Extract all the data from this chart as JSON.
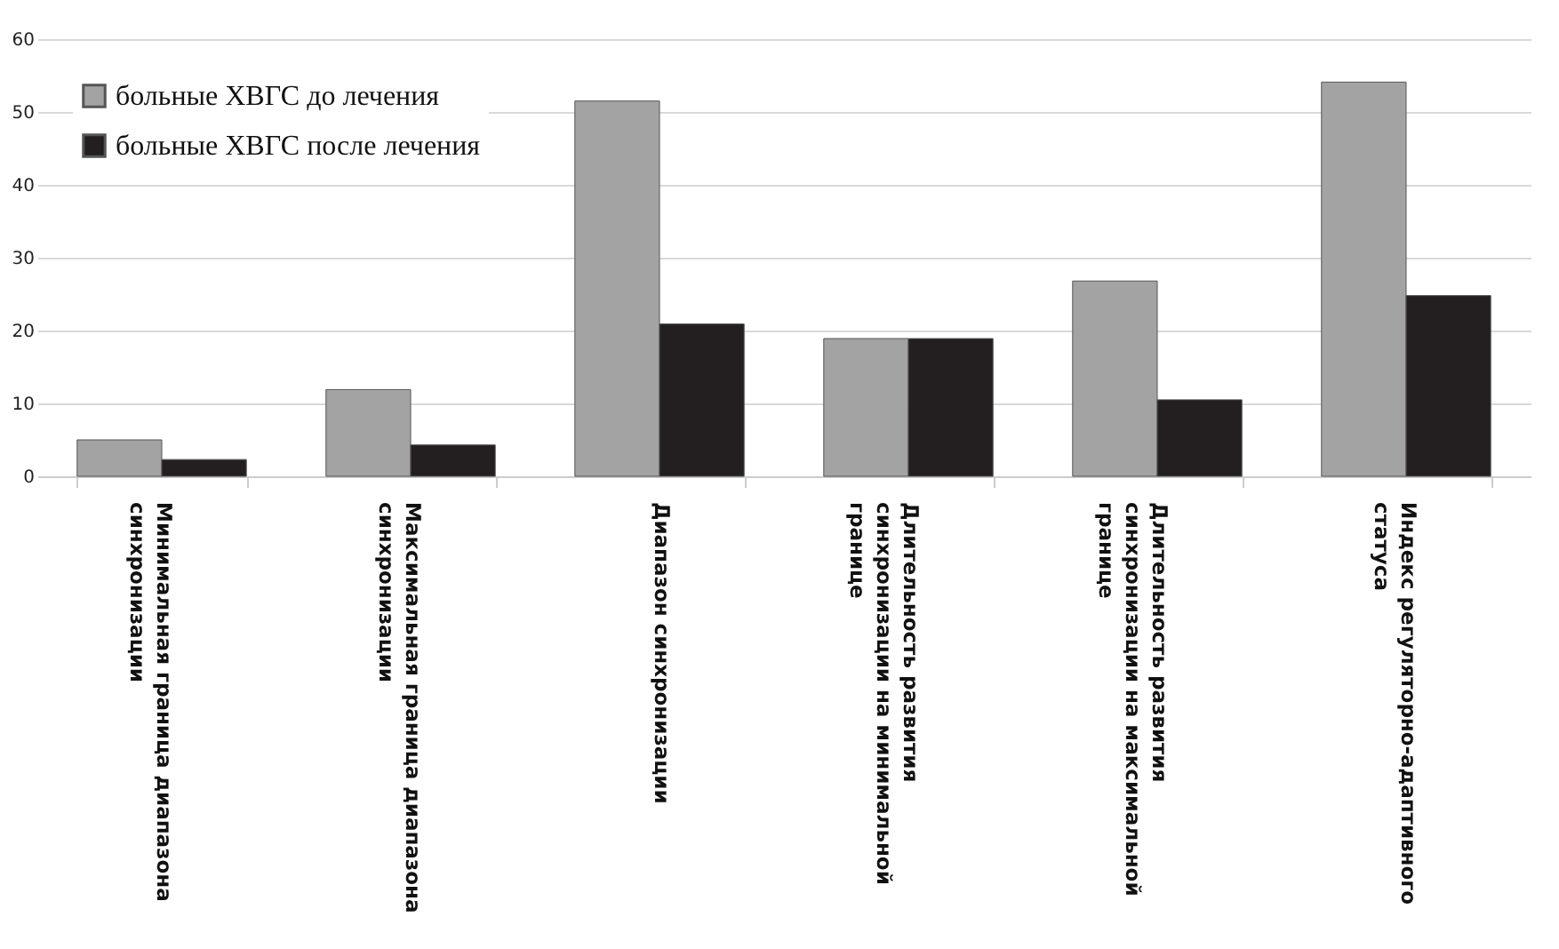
{
  "chart_data": {
    "type": "bar",
    "categories": [
      "Минимальная граница диапазона синхронизации",
      "Максимальная граница диапазона синхронизации",
      "Диапазон синхронизации",
      "Длительность развития синхронизации на минимальной границе",
      "Длительность развития синхронизации на максимальной границе",
      "Индекс регуляторно-адаптивного статуса"
    ],
    "series": [
      {
        "name": "больные ХВГС до лечения",
        "color": "#a3a3a3",
        "values": [
          5.0,
          11.9,
          51.5,
          18.9,
          26.8,
          54.1
        ]
      },
      {
        "name": "больные ХВГС после лечения",
        "color": "#231f20",
        "values": [
          2.3,
          4.3,
          20.9,
          18.9,
          10.5,
          24.8
        ]
      }
    ],
    "ylim": [
      0,
      60
    ],
    "yticks": [
      0,
      10,
      20,
      30,
      40,
      50,
      60
    ],
    "grid": "y",
    "legend": "top left"
  }
}
